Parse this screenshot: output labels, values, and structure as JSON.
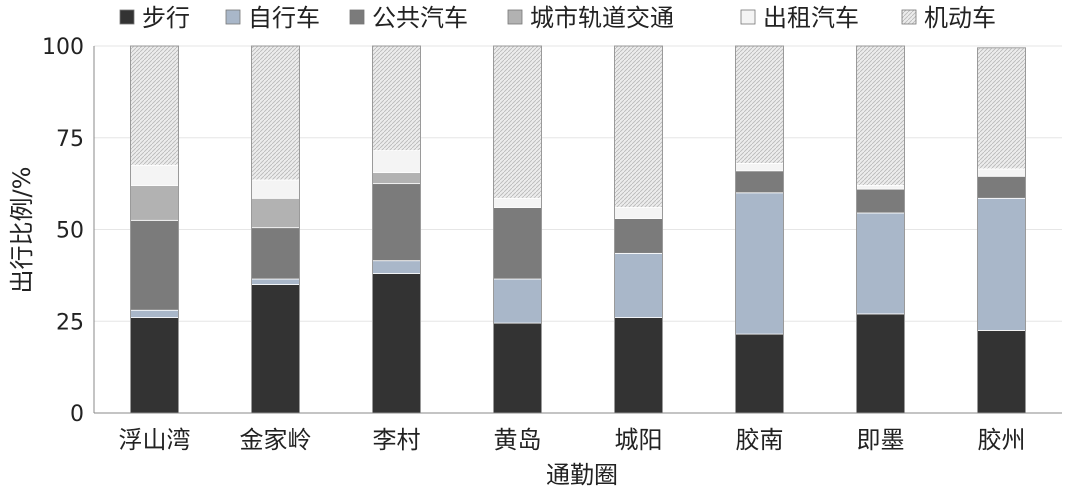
{
  "chart_data": {
    "type": "bar",
    "stacked": true,
    "xlabel": "通勤圈",
    "ylabel": "出行比例/%",
    "ylim": [
      0,
      100
    ],
    "yticks": [
      0,
      25,
      50,
      75,
      100
    ],
    "grid": true,
    "legend_position": "top",
    "categories": [
      "浮山湾",
      "金家岭",
      "李村",
      "黄岛",
      "城阳",
      "胶南",
      "即墨",
      "胶州"
    ],
    "series": [
      {
        "name": "步行",
        "color": "#333333",
        "values": [
          26,
          35,
          38,
          24.5,
          26,
          21.5,
          27,
          22.5
        ]
      },
      {
        "name": "自行车",
        "color": "#a9b7c9",
        "values": [
          2,
          1.5,
          3.5,
          12,
          17.5,
          38.5,
          27.5,
          36
        ]
      },
      {
        "name": "公共汽车",
        "color": "#7b7b7b",
        "values": [
          24.5,
          14,
          21,
          19.5,
          9.5,
          6,
          6.5,
          6
        ]
      },
      {
        "name": "城市轨道交通",
        "color": "#b2b2b2",
        "values": [
          9.5,
          8,
          3,
          0,
          0,
          0,
          0,
          0
        ]
      },
      {
        "name": "出租汽车",
        "color": "#f4f4f4",
        "values": [
          5.5,
          5,
          6,
          2.5,
          3,
          2,
          1,
          2
        ]
      },
      {
        "name": "机动车",
        "color": "#e3e3e3",
        "pattern": "hatch",
        "values": [
          32.5,
          36.5,
          28.5,
          41.5,
          44,
          32,
          38,
          33
        ]
      }
    ]
  }
}
